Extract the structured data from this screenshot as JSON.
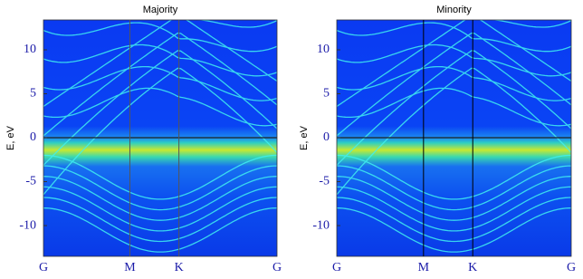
{
  "chart_data": [
    {
      "type": "heatmap",
      "title": "Majority",
      "ylabel": "E, eV",
      "xlim": [
        0,
        1
      ],
      "xticks": [
        {
          "value": 0,
          "label": "G"
        },
        {
          "value": 0.37,
          "label": "M"
        },
        {
          "value": 0.58,
          "label": "K"
        },
        {
          "value": 1,
          "label": "G"
        }
      ],
      "ylim": [
        -13.5,
        13.4
      ],
      "yticks": [
        -10,
        -5,
        0,
        5,
        10
      ]
    },
    {
      "type": "heatmap",
      "title": "Minority",
      "ylabel": "E, eV",
      "xlim": [
        0,
        1
      ],
      "xticks": [
        {
          "value": 0,
          "label": "G"
        },
        {
          "value": 0.37,
          "label": "M"
        },
        {
          "value": 0.58,
          "label": "K"
        },
        {
          "value": 1,
          "label": "G"
        }
      ],
      "ylim": [
        -13.5,
        13.4
      ],
      "yticks": [
        -10,
        -5,
        0,
        5,
        10
      ]
    }
  ]
}
